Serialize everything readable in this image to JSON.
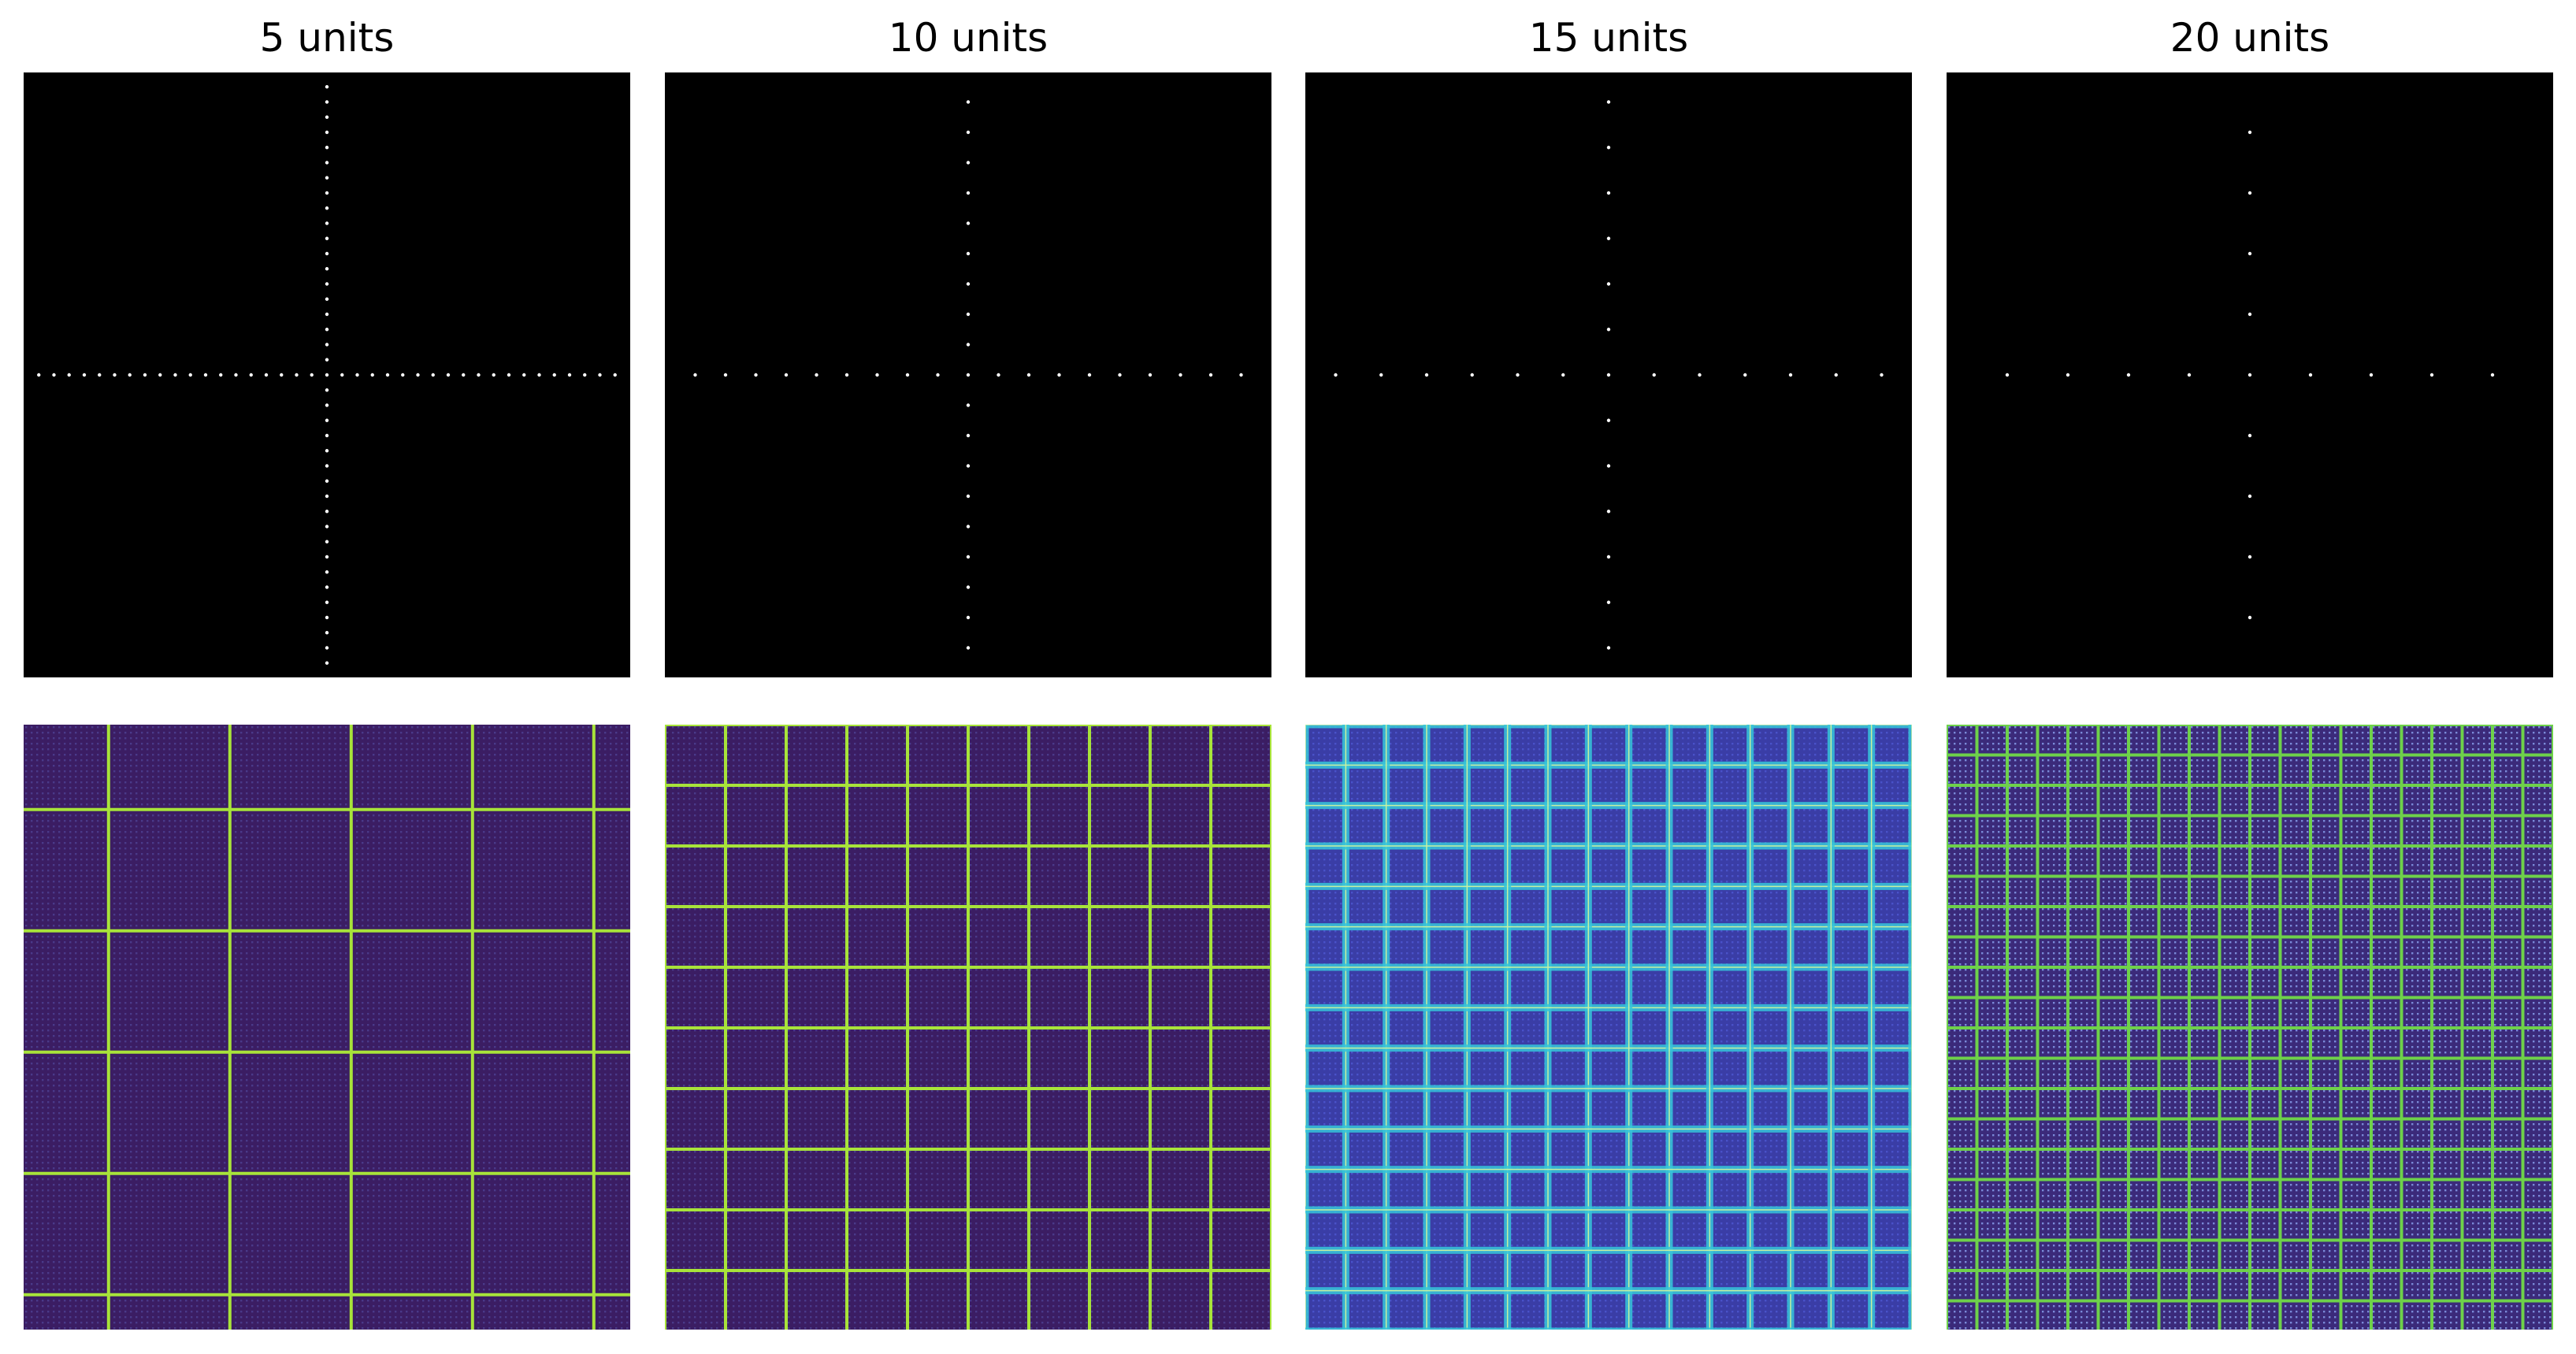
{
  "chart_data": [
    {
      "type": "heatmap",
      "title": "5 units",
      "description_row": "top",
      "pattern": "cross-of-dots",
      "spacing_units": 5,
      "axes": "off",
      "colors": {
        "background": "#000000",
        "marks": "#ffffff"
      }
    },
    {
      "type": "heatmap",
      "title": "10 units",
      "description_row": "top",
      "pattern": "cross-of-dots",
      "spacing_units": 10,
      "axes": "off",
      "colors": {
        "background": "#000000",
        "marks": "#ffffff"
      }
    },
    {
      "type": "heatmap",
      "title": "15 units",
      "description_row": "top",
      "pattern": "cross-of-dots",
      "spacing_units": 15,
      "axes": "off",
      "colors": {
        "background": "#000000",
        "marks": "#ffffff"
      }
    },
    {
      "type": "heatmap",
      "title": "20 units",
      "description_row": "top",
      "pattern": "cross-of-dots",
      "spacing_units": 20,
      "axes": "off",
      "colors": {
        "background": "#000000",
        "marks": "#ffffff"
      }
    },
    {
      "type": "heatmap",
      "title": "",
      "description_row": "bottom",
      "pattern": "grid",
      "spacing_units": 5,
      "grid_lines_per_axis": 5,
      "axes": "off",
      "colormap": "viridis",
      "colors": {
        "background": "#3b1d63",
        "lines": "#a8e33a",
        "texture": "#4a3a8a"
      }
    },
    {
      "type": "heatmap",
      "title": "",
      "description_row": "bottom",
      "pattern": "grid",
      "spacing_units": 10,
      "grid_lines_per_axis": 10,
      "axes": "off",
      "colormap": "viridis",
      "colors": {
        "background": "#3b1d63",
        "lines": "#a8e33a",
        "texture": "#4a3a8a"
      }
    },
    {
      "type": "heatmap",
      "title": "",
      "description_row": "bottom",
      "pattern": "grid",
      "spacing_units": 15,
      "grid_lines_per_axis": 15,
      "axes": "off",
      "colormap": "viridis",
      "colors": {
        "background": "#3a3da6",
        "lines": "#36c6d9",
        "texture": "#4a52c9"
      }
    },
    {
      "type": "heatmap",
      "title": "",
      "description_row": "bottom",
      "pattern": "grid",
      "spacing_units": 20,
      "grid_lines_per_axis": 20,
      "axes": "off",
      "colormap": "viridis",
      "colors": {
        "background": "#3b2a7a",
        "lines": "#6ed14a",
        "texture": "#7a8ad8"
      }
    }
  ]
}
